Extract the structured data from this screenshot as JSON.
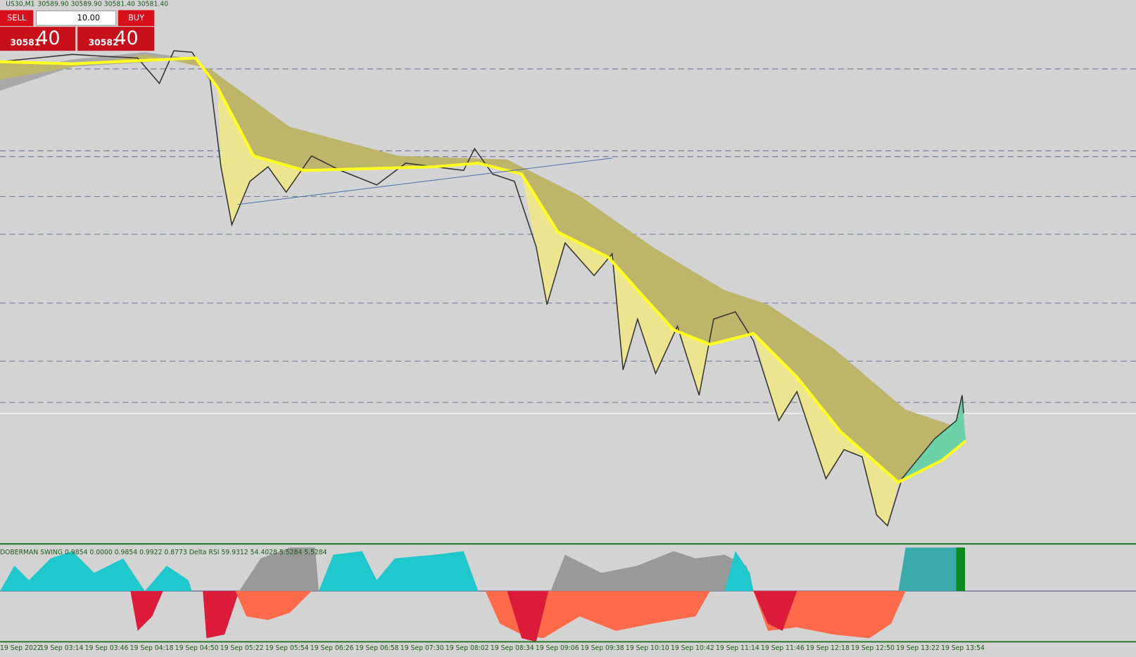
{
  "header": {
    "symbol": "US30,M1",
    "ohlc": "30589.90 30589.90 30581.40 30581.40"
  },
  "trade_panel": {
    "sell": "SELL",
    "buy": "BUY",
    "lot": "10.00",
    "sell_price_main": "30581",
    "sell_price_pips": "40",
    "buy_price_main": "30582",
    "buy_price_pips": "40"
  },
  "indicator": {
    "label": "DOBERMAN SWING 0.9854 0.0000 0.9854 0.9922 0.8773  Delta RSI 59.9312 54.4028 5.5284 5.5284"
  },
  "time_axis": {
    "labels": [
      "19 Sep 2022",
      "19 Sep 03:14",
      "19 Sep 03:46",
      "19 Sep 04:18",
      "19 Sep 04:50",
      "19 Sep 05:22",
      "19 Sep 05:54",
      "19 Sep 06:26",
      "19 Sep 06:58",
      "19 Sep 07:30",
      "19 Sep 08:02",
      "19 Sep 08:34",
      "19 Sep 09:06",
      "19 Sep 09:38",
      "19 Sep 10:10",
      "19 Sep 10:42",
      "19 Sep 11:14",
      "19 Sep 11:46",
      "19 Sep 12:18",
      "19 Sep 12:50",
      "19 Sep 13:22",
      "19 Sep 13:54"
    ]
  }
}
